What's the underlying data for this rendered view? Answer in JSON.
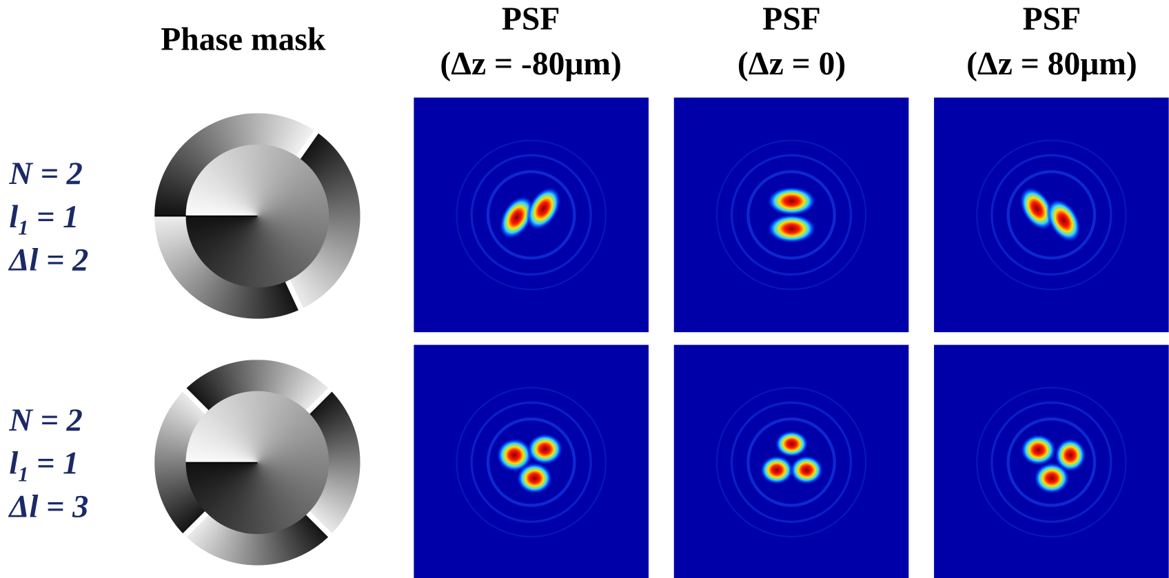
{
  "header": {
    "columns": [
      {
        "title": "Phase mask"
      },
      {
        "title": "PSF",
        "subtitle": "(Δz = -80μm)"
      },
      {
        "title": "PSF",
        "subtitle": "(Δz = 0)"
      },
      {
        "title": "PSF",
        "subtitle": "(Δz = 80μm)"
      }
    ]
  },
  "rows": [
    {
      "lines": [
        {
          "text": "N = 2"
        },
        {
          "text": "l",
          "sub": "1",
          "tail": " = 1"
        },
        {
          "text": "Δl = 2"
        }
      ]
    },
    {
      "lines": [
        {
          "text": "N = 2"
        },
        {
          "text": "l",
          "sub": "1",
          "tail": " = 1"
        },
        {
          "text": "Δl = 3"
        }
      ]
    }
  ]
}
